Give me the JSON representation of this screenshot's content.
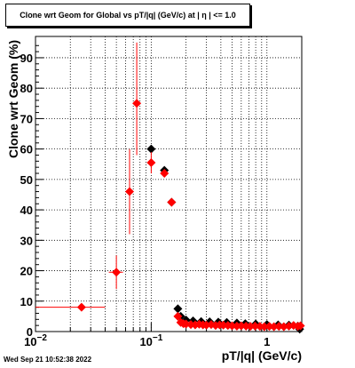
{
  "title": "Clone wrt Geom for Global vs pT/|q| (GeV/c) at |  η | <= 1.0",
  "footer": {
    "timestamp": "Wed Sep 21 10:52:38 2022"
  },
  "chart_data": {
    "type": "scatter",
    "xlabel": "pT/|q| (GeV/c)",
    "ylabel": "Clone wrt Geom (%)",
    "xscale": "log",
    "xlim": [
      0.01,
      2.0
    ],
    "ylim": [
      0,
      97
    ],
    "grid": true,
    "x_ticks": [
      {
        "value": 0.01,
        "base": "10",
        "exp": "−2"
      },
      {
        "value": 0.1,
        "base": "10",
        "exp": "−1"
      },
      {
        "value": 1,
        "base": "1",
        "exp": ""
      }
    ],
    "y_ticks": [
      "0",
      "10",
      "20",
      "30",
      "40",
      "50",
      "60",
      "70",
      "80",
      "90"
    ],
    "series": [
      {
        "color": "#000000",
        "marker": "diamond",
        "points": [
          {
            "x": 0.1,
            "y": 60
          },
          {
            "x": 0.13,
            "y": 53
          },
          {
            "x": 0.15,
            "y": 42.5
          },
          {
            "x": 0.17,
            "y": 7.5
          },
          {
            "x": 0.18,
            "y": 5
          },
          {
            "x": 0.2,
            "y": 3.8
          },
          {
            "x": 0.23,
            "y": 3.5
          },
          {
            "x": 0.27,
            "y": 3.3
          },
          {
            "x": 0.32,
            "y": 3.2
          },
          {
            "x": 0.38,
            "y": 3.1
          },
          {
            "x": 0.45,
            "y": 3
          },
          {
            "x": 0.55,
            "y": 2.8
          },
          {
            "x": 0.65,
            "y": 2.6
          },
          {
            "x": 0.8,
            "y": 2.5
          },
          {
            "x": 1.0,
            "y": 2.3
          },
          {
            "x": 1.25,
            "y": 2.2
          },
          {
            "x": 1.55,
            "y": 2.1
          },
          {
            "x": 1.85,
            "y": 1.8
          },
          {
            "x": 1.92,
            "y": 0.8
          }
        ]
      },
      {
        "color": "#ff0000",
        "marker": "diamond",
        "points": [
          {
            "x": 0.025,
            "y": 8,
            "xlo": 0.01,
            "xhi": 0.04,
            "ylo": 8,
            "yhi": 8
          },
          {
            "x": 0.05,
            "y": 19.5,
            "xlo": 0.043,
            "xhi": 0.057,
            "ylo": 14,
            "yhi": 25
          },
          {
            "x": 0.065,
            "y": 46,
            "ylo": 32,
            "yhi": 60
          },
          {
            "x": 0.075,
            "y": 75,
            "ylo": 58,
            "yhi": 95
          },
          {
            "x": 0.1,
            "y": 55.5,
            "xlo": 0.093,
            "xhi": 0.108,
            "ylo": 52,
            "yhi": 59
          },
          {
            "x": 0.13,
            "y": 52,
            "xlo": 0.122,
            "xhi": 0.139
          },
          {
            "x": 0.15,
            "y": 42.5
          },
          {
            "x": 0.17,
            "y": 5
          },
          {
            "x": 0.18,
            "y": 3
          },
          {
            "x": 0.19,
            "y": 2.6
          },
          {
            "x": 0.2,
            "y": 2.5
          },
          {
            "x": 0.22,
            "y": 2.3
          },
          {
            "x": 0.24,
            "y": 2.2
          },
          {
            "x": 0.26,
            "y": 2.4
          },
          {
            "x": 0.28,
            "y": 2.2
          },
          {
            "x": 0.3,
            "y": 2.1
          },
          {
            "x": 0.33,
            "y": 2.3
          },
          {
            "x": 0.36,
            "y": 2.0
          },
          {
            "x": 0.39,
            "y": 2.2
          },
          {
            "x": 0.42,
            "y": 2.1
          },
          {
            "x": 0.46,
            "y": 2.0
          },
          {
            "x": 0.5,
            "y": 1.9
          },
          {
            "x": 0.55,
            "y": 1.8
          },
          {
            "x": 0.6,
            "y": 1.9
          },
          {
            "x": 0.66,
            "y": 1.8
          },
          {
            "x": 0.72,
            "y": 1.7
          },
          {
            "x": 0.79,
            "y": 1.8
          },
          {
            "x": 0.87,
            "y": 1.7
          },
          {
            "x": 0.95,
            "y": 1.6
          },
          {
            "x": 1.05,
            "y": 1.7
          },
          {
            "x": 1.15,
            "y": 1.6
          },
          {
            "x": 1.27,
            "y": 1.7
          },
          {
            "x": 1.4,
            "y": 1.6
          },
          {
            "x": 1.55,
            "y": 1.8
          },
          {
            "x": 1.7,
            "y": 2.0
          },
          {
            "x": 1.85,
            "y": 1.7
          },
          {
            "x": 1.95,
            "y": 1.9
          }
        ]
      }
    ]
  }
}
